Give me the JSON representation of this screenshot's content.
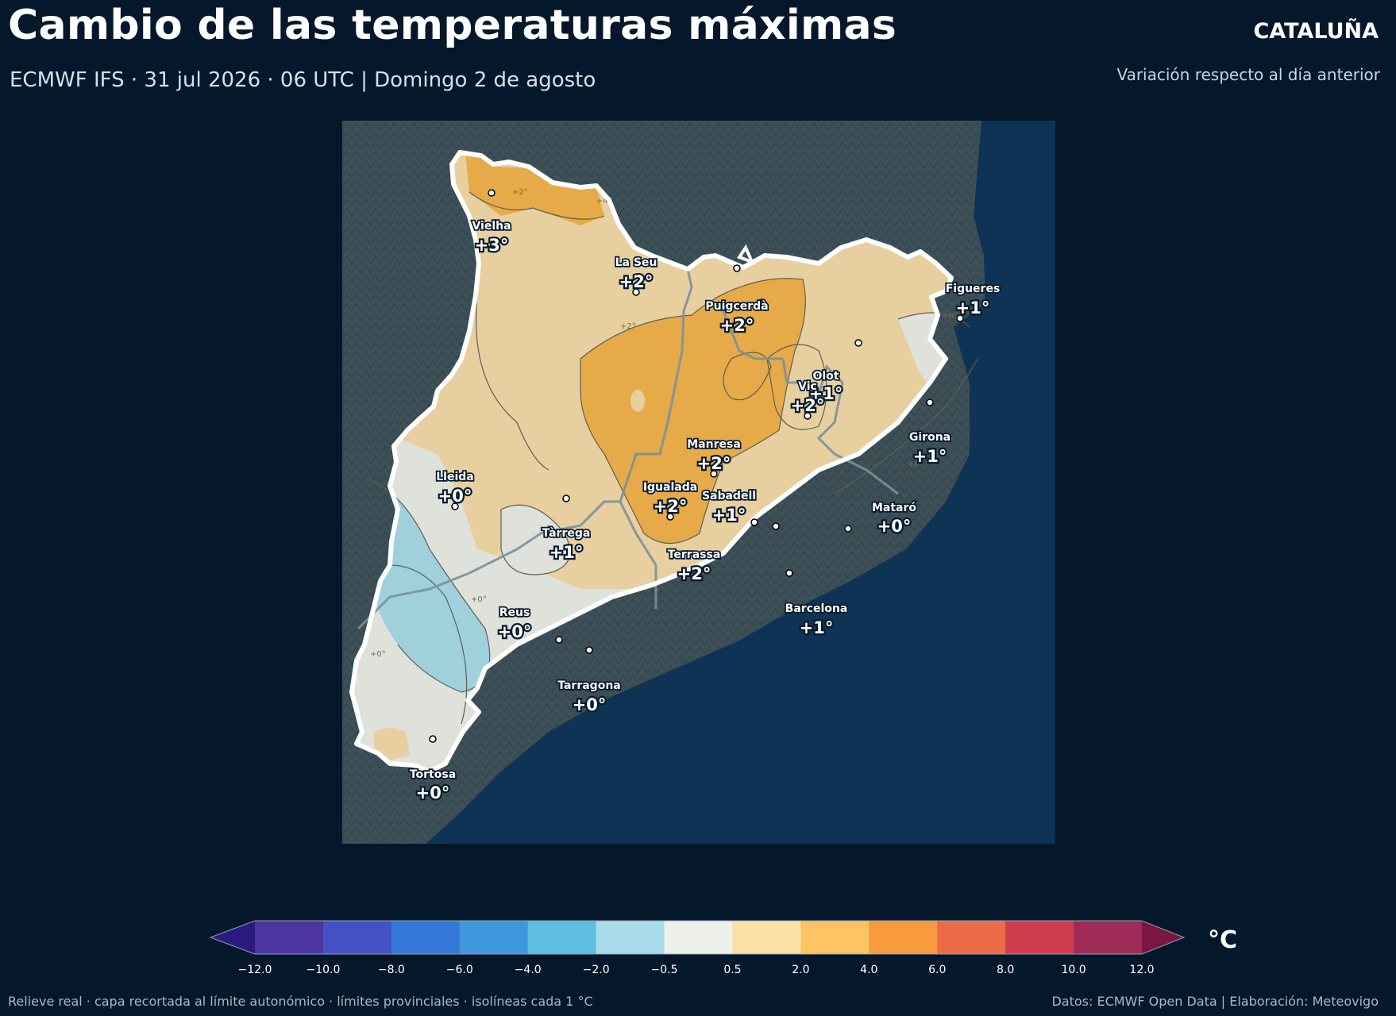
{
  "header": {
    "title": "Cambio de las temperaturas máximas",
    "subtitle": "ECMWF IFS · 31 jul 2026 · 06 UTC  |  Domingo 2 de agosto",
    "region": "CATALUÑA",
    "region_sub": "Variación respecto al día anterior"
  },
  "cities": [
    {
      "name": "Vielha",
      "value": "+3°"
    },
    {
      "name": "La Seu",
      "value": "+2°"
    },
    {
      "name": "Puigcerdà",
      "value": "+2°"
    },
    {
      "name": "Figueres",
      "value": "+1°"
    },
    {
      "name": "Olot",
      "value": "+1°"
    },
    {
      "name": "Vic",
      "value": "+2°"
    },
    {
      "name": "Manresa",
      "value": "+2°"
    },
    {
      "name": "Girona",
      "value": "+1°"
    },
    {
      "name": "Lleida",
      "value": "+0°"
    },
    {
      "name": "Igualada",
      "value": "+2°"
    },
    {
      "name": "Sabadell",
      "value": "+1°"
    },
    {
      "name": "Mataró",
      "value": "+0°"
    },
    {
      "name": "Tàrrega",
      "value": "+1°"
    },
    {
      "name": "Terrassa",
      "value": "+2°"
    },
    {
      "name": "Reus",
      "value": "+0°"
    },
    {
      "name": "Barcelona",
      "value": "+1°"
    },
    {
      "name": "Tarragona",
      "value": "+0°"
    },
    {
      "name": "Tortosa",
      "value": "+0°"
    }
  ],
  "isolines": [
    "+2°",
    "+4°",
    "+2°",
    "+0°",
    "+0°",
    "+0°",
    "+0°"
  ],
  "colorbar": {
    "unit": "°C",
    "ticks": [
      "−12.0",
      "−10.0",
      "−8.0",
      "−6.0",
      "−4.0",
      "−2.0",
      "−0.5",
      "0.5",
      "2.0",
      "4.0",
      "6.0",
      "8.0",
      "10.0",
      "12.0"
    ],
    "colors": [
      "#2b1a7e",
      "#4b36a0",
      "#4450c6",
      "#3578d8",
      "#3f98dc",
      "#5ebee0",
      "#a9dcea",
      "#eef0ea",
      "#fde0a8",
      "#fcc462",
      "#f79b3e",
      "#ed6a48",
      "#cf3c50",
      "#9e2c57",
      "#7a1643"
    ]
  },
  "footer": {
    "left": "Relieve real · capa recortada al límite autonómico · límites provinciales · isolíneas cada 1 °C",
    "right": "Datos: ECMWF Open Data | Elaboración: Meteovigo"
  }
}
